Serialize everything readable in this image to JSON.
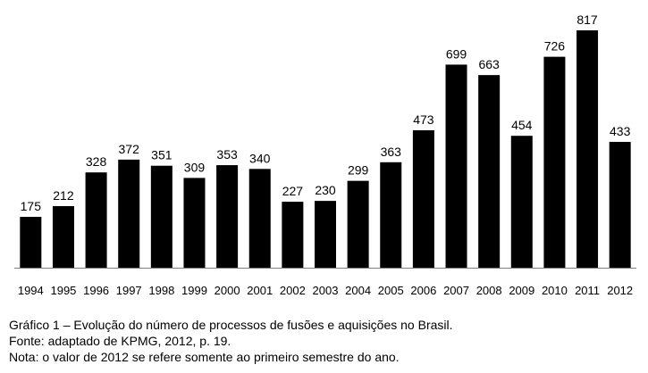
{
  "chart_data": {
    "type": "bar",
    "categories": [
      "1994",
      "1995",
      "1996",
      "1997",
      "1998",
      "1999",
      "2000",
      "2001",
      "2002",
      "2003",
      "2004",
      "2005",
      "2006",
      "2007",
      "2008",
      "2009",
      "2010",
      "2011",
      "2012"
    ],
    "values": [
      175,
      212,
      328,
      372,
      351,
      309,
      353,
      340,
      227,
      230,
      299,
      363,
      473,
      699,
      663,
      454,
      726,
      817,
      433
    ],
    "title": "",
    "xlabel": "",
    "ylabel": "",
    "ylim": [
      0,
      817
    ],
    "bar_color": "#000000",
    "grid": false,
    "legend": "none"
  },
  "caption": {
    "line1": "Gráfico 1 – Evolução do número de processos de fusões e aquisições no Brasil.",
    "line2": "Fonte: adaptado de KPMG, 2012, p. 19.",
    "line3": "Nota: o valor de 2012 se refere somente ao primeiro semestre do ano."
  }
}
